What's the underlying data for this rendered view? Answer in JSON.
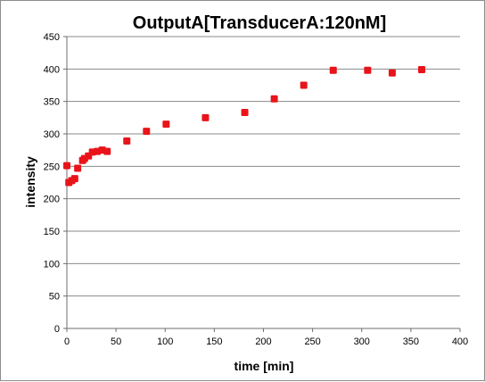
{
  "chart_data": {
    "type": "scatter",
    "title": "OutputA[TransducerA:120nM]",
    "xlabel": "time [min]",
    "ylabel": "intensity",
    "xlim": [
      0,
      400
    ],
    "ylim": [
      0,
      450
    ],
    "xticks": [
      0,
      50,
      100,
      150,
      200,
      250,
      300,
      350,
      400
    ],
    "yticks": [
      0,
      50,
      100,
      150,
      200,
      250,
      300,
      350,
      400,
      450
    ],
    "grid": "horizontal",
    "legend": "none",
    "marker_color": "#e8141a",
    "points": [
      {
        "x": 0,
        "y": 251
      },
      {
        "x": 2,
        "y": 225
      },
      {
        "x": 5,
        "y": 228
      },
      {
        "x": 8,
        "y": 231
      },
      {
        "x": 11,
        "y": 247
      },
      {
        "x": 16,
        "y": 259
      },
      {
        "x": 18,
        "y": 262
      },
      {
        "x": 22,
        "y": 266
      },
      {
        "x": 26,
        "y": 272
      },
      {
        "x": 31,
        "y": 273
      },
      {
        "x": 36,
        "y": 275
      },
      {
        "x": 41,
        "y": 273
      },
      {
        "x": 61,
        "y": 289
      },
      {
        "x": 81,
        "y": 304
      },
      {
        "x": 101,
        "y": 315
      },
      {
        "x": 141,
        "y": 325
      },
      {
        "x": 181,
        "y": 333
      },
      {
        "x": 211,
        "y": 354
      },
      {
        "x": 241,
        "y": 375
      },
      {
        "x": 271,
        "y": 398
      },
      {
        "x": 306,
        "y": 398
      },
      {
        "x": 331,
        "y": 394
      },
      {
        "x": 361,
        "y": 399
      }
    ]
  }
}
